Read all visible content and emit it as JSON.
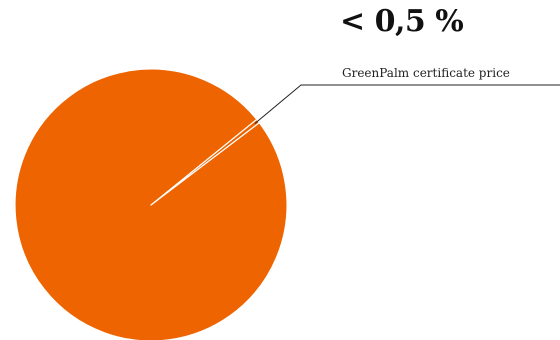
{
  "chart_data": {
    "type": "pie",
    "title": "",
    "slices": [
      {
        "label": "GreenPalm certificate price",
        "value": 0.5,
        "display": "< 0,5 %"
      },
      {
        "label": "",
        "value": 99.5
      }
    ],
    "colors": {
      "main": "#EE6400",
      "separator": "#ffffff",
      "leader": "#222222"
    }
  }
}
